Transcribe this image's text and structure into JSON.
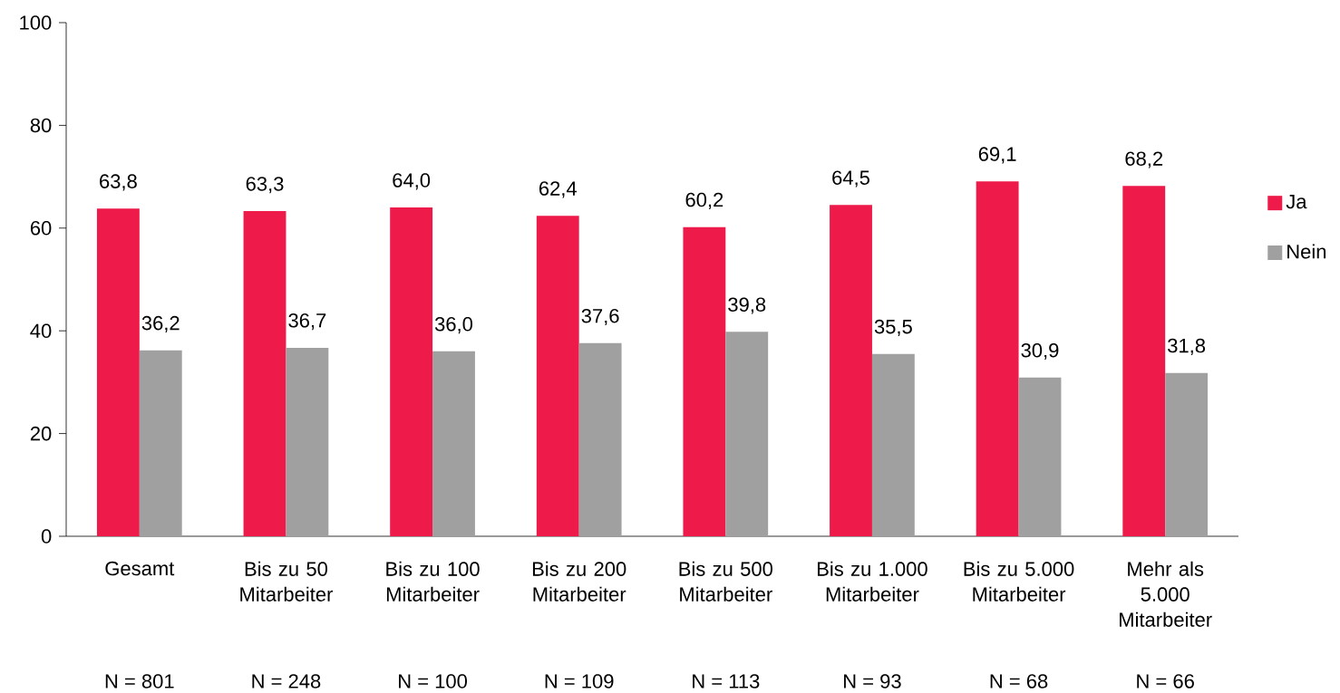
{
  "chart_data": {
    "type": "bar",
    "categories": [
      "Gesamt",
      "Bis zu 50 Mitarbeiter",
      "Bis zu 100 Mitarbeiter",
      "Bis zu 200 Mitarbeiter",
      "Bis zu 500 Mitarbeiter",
      "Bis zu 1.000 Mitarbeiter",
      "Bis zu 5.000 Mitarbeiter",
      "Mehr als 5.000 Mitarbeiter"
    ],
    "series": [
      {
        "name": "Ja",
        "color": "#ed1a4a",
        "values": [
          63.8,
          63.3,
          64.0,
          62.4,
          60.2,
          64.5,
          69.1,
          68.2
        ],
        "value_labels": [
          "63,8",
          "63,3",
          "64,0",
          "62,4",
          "60,2",
          "64,5",
          "69,1",
          "68,2"
        ]
      },
      {
        "name": "Nein",
        "color": "#a0a0a0",
        "values": [
          36.2,
          36.7,
          36.0,
          37.6,
          39.8,
          35.5,
          30.9,
          31.8
        ],
        "value_labels": [
          "36,2",
          "36,7",
          "36,0",
          "37,6",
          "39,8",
          "35,5",
          "30,9",
          "31,8"
        ]
      }
    ],
    "ylim": [
      0,
      100
    ],
    "yticks": [
      0,
      20,
      40,
      60,
      80,
      100
    ],
    "grid": false,
    "legend": "right",
    "annotations": [
      "N = 801",
      "N = 248",
      "N = 100",
      "N = 109",
      "N = 113",
      "N = 93",
      "N = 68",
      "N = 66"
    ]
  }
}
